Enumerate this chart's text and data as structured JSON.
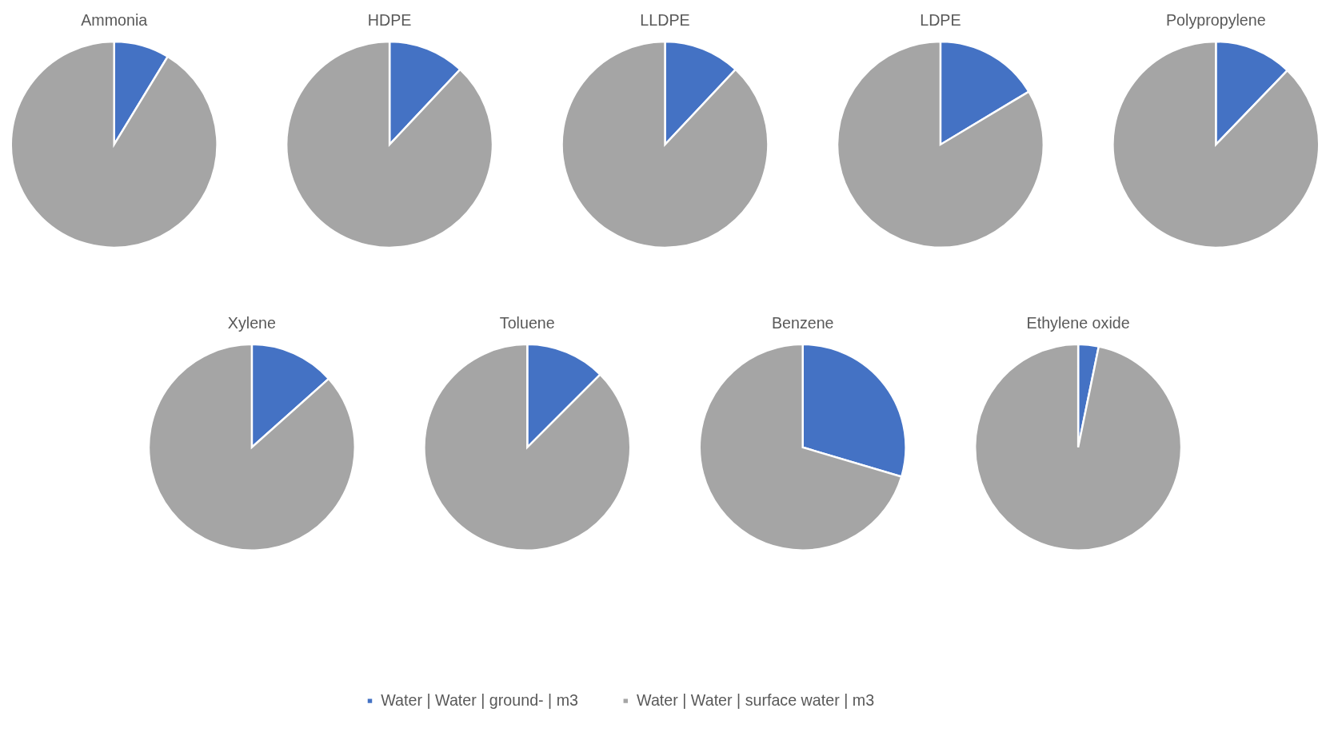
{
  "chart_data": [
    {
      "type": "pie",
      "title": "Ammonia",
      "categories": [
        "Water | Water | ground- | m3",
        "Water | Water | surface water | m3"
      ],
      "values": [
        8.7,
        91.3
      ],
      "colors": [
        "#4472c4",
        "#a5a5a5"
      ],
      "legend": "bottom"
    },
    {
      "type": "pie",
      "title": "HDPE",
      "categories": [
        null,
        null
      ],
      "values": [
        12,
        88
      ],
      "colors": [
        "#4472c4",
        "#a5a5a5"
      ]
    },
    {
      "type": "pie",
      "title": "LLDPE",
      "categories": [
        null,
        null
      ],
      "values": [
        12,
        88
      ],
      "colors": [
        "#4472c4",
        "#a5a5a5"
      ]
    },
    {
      "type": "pie",
      "title": "LDPE",
      "categories": [
        null,
        null
      ],
      "values": [
        16.4,
        83.6
      ],
      "colors": [
        "#4472c4",
        "#a5a5a5"
      ]
    },
    {
      "type": "pie",
      "title": "Polypropylene",
      "categories": [
        null,
        null
      ],
      "values": [
        12.2,
        87.8
      ],
      "colors": [
        "#4472c4",
        "#a5a5a5"
      ]
    },
    {
      "type": "pie",
      "title": "Xylene",
      "categories": [
        null,
        null
      ],
      "values": [
        13.4,
        86.6
      ],
      "colors": [
        "#4472c4",
        "#a5a5a5"
      ]
    },
    {
      "type": "pie",
      "title": "Toluene",
      "categories": [
        null,
        null
      ],
      "values": [
        12.5,
        87.5
      ],
      "colors": [
        "#4472c4",
        "#a5a5a5"
      ]
    },
    {
      "type": "pie",
      "title": "Benzene",
      "categories": [
        null,
        null
      ],
      "values": [
        29.6,
        70.4
      ],
      "colors": [
        "#4472c4",
        "#a5a5a5"
      ]
    },
    {
      "type": "pie",
      "title": "Ethylene oxide",
      "categories": [
        null,
        null
      ],
      "values": [
        3.2,
        96.8
      ],
      "colors": [
        "#4472c4",
        "#a5a5a5"
      ]
    }
  ]
}
